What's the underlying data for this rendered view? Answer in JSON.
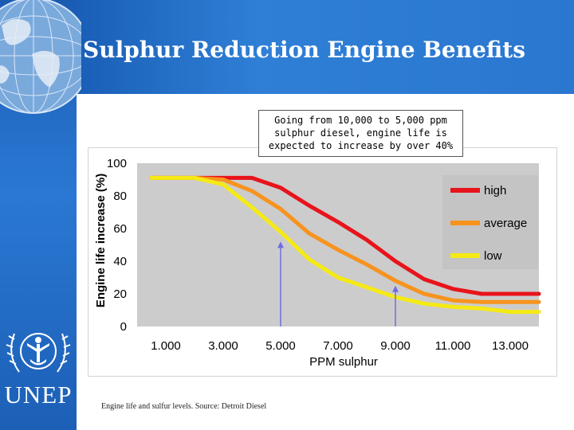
{
  "slide": {
    "title": "Sulphur Reduction Engine Benefits",
    "logo_text": "UNEP",
    "annotation": "Going from 10,000 to 5,000 ppm sulphur diesel, engine life is expected to increase by over 40%",
    "source_note": "Engine life and sulfur levels. Source: Detroit Diesel"
  },
  "colors": {
    "band": "#2a77d0",
    "plot_bg": "#cccccc",
    "high": "#e8141b",
    "average": "#f7931e",
    "low": "#f5ea14",
    "arrow": "#6e6ee0"
  },
  "chart_data": {
    "type": "line",
    "xlabel": "PPM sulphur",
    "ylabel": "Engine life increase (%)",
    "xlim": [
      0,
      14000
    ],
    "ylim": [
      0,
      100
    ],
    "x_tick_values": [
      1000,
      3000,
      5000,
      7000,
      9000,
      11000,
      13000
    ],
    "x_tick_labels": [
      "1.000",
      "3.000",
      "5.000",
      "7.000",
      "9.000",
      "11.000",
      "13.000"
    ],
    "y_ticks": [
      0,
      20,
      40,
      60,
      80,
      100
    ],
    "grid": false,
    "legend_position": "top-right",
    "series": [
      {
        "name": "high",
        "color": "#e8141b",
        "x": [
          500,
          2000,
          3000,
          4000,
          5000,
          6000,
          7000,
          8000,
          9000,
          10000,
          11000,
          12000,
          13000,
          14000
        ],
        "y": [
          91,
          91,
          91,
          91,
          85,
          74,
          64,
          53,
          40,
          29,
          23,
          20,
          20,
          20
        ]
      },
      {
        "name": "average",
        "color": "#f7931e",
        "x": [
          500,
          2000,
          3000,
          4000,
          5000,
          6000,
          7000,
          8000,
          9000,
          10000,
          11000,
          12000,
          13000,
          14000
        ],
        "y": [
          91,
          91,
          90,
          83,
          72,
          57,
          47,
          38,
          28,
          20,
          16,
          15,
          15,
          15
        ]
      },
      {
        "name": "low",
        "color": "#f5ea14",
        "x": [
          500,
          2000,
          3000,
          4000,
          5000,
          6000,
          7000,
          8000,
          9000,
          10000,
          11000,
          12000,
          13000,
          14000
        ],
        "y": [
          91,
          91,
          87,
          73,
          58,
          41,
          30,
          24,
          18,
          14,
          12,
          11,
          9,
          9
        ]
      }
    ],
    "markers": [
      {
        "x": 5000,
        "y_from": 0,
        "y_to": 52
      },
      {
        "x": 9000,
        "y_from": 0,
        "y_to": 25
      }
    ]
  }
}
